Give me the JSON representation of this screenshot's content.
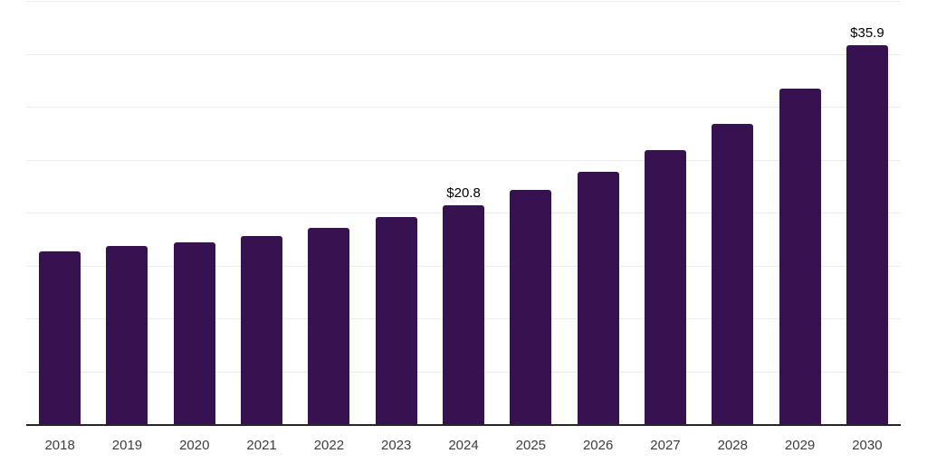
{
  "chart_data": {
    "type": "bar",
    "categories": [
      "2018",
      "2019",
      "2020",
      "2021",
      "2022",
      "2023",
      "2024",
      "2025",
      "2026",
      "2027",
      "2028",
      "2029",
      "2030"
    ],
    "values": [
      16.4,
      16.9,
      17.3,
      17.9,
      18.6,
      19.7,
      20.8,
      22.2,
      23.9,
      26.0,
      28.5,
      31.8,
      35.9
    ],
    "bar_labels": [
      "",
      "",
      "",
      "",
      "",
      "",
      "$20.8",
      "",
      "",
      "",
      "",
      "",
      "$35.9"
    ],
    "title": "",
    "xlabel": "",
    "ylabel": "",
    "ylim": [
      0,
      40
    ],
    "gridline_step": 5,
    "grid": true,
    "legend": false,
    "y_axis_labels_shown": false
  },
  "colors": {
    "bar": "#371250",
    "grid": "#ededed",
    "axis": "#262626",
    "tick_label": "#3d3d3d",
    "data_label": "#000000",
    "background": "#ffffff"
  }
}
